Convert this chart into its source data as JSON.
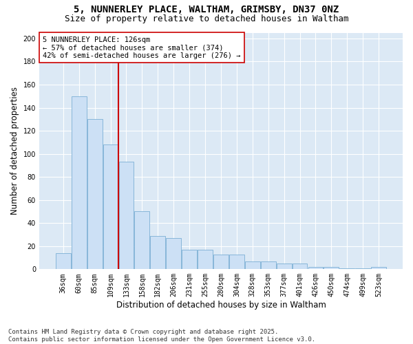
{
  "title": "5, NUNNERLEY PLACE, WALTHAM, GRIMSBY, DN37 0NZ",
  "subtitle": "Size of property relative to detached houses in Waltham",
  "xlabel": "Distribution of detached houses by size in Waltham",
  "ylabel": "Number of detached properties",
  "categories": [
    "36sqm",
    "60sqm",
    "85sqm",
    "109sqm",
    "133sqm",
    "158sqm",
    "182sqm",
    "206sqm",
    "231sqm",
    "255sqm",
    "280sqm",
    "304sqm",
    "328sqm",
    "353sqm",
    "377sqm",
    "401sqm",
    "426sqm",
    "450sqm",
    "474sqm",
    "499sqm",
    "523sqm"
  ],
  "values": [
    14,
    150,
    130,
    108,
    93,
    50,
    29,
    27,
    17,
    17,
    13,
    13,
    7,
    7,
    5,
    5,
    2,
    2,
    1,
    1,
    2
  ],
  "bar_color": "#cce0f5",
  "bar_edge_color": "#7bafd4",
  "vline_color": "#cc0000",
  "vline_pos": 3.5,
  "annotation_text": "5 NUNNERLEY PLACE: 126sqm\n← 57% of detached houses are smaller (374)\n42% of semi-detached houses are larger (276) →",
  "annotation_box_color": "#ffffff",
  "annotation_box_edge": "#cc0000",
  "ylim": [
    0,
    205
  ],
  "yticks": [
    0,
    20,
    40,
    60,
    80,
    100,
    120,
    140,
    160,
    180,
    200
  ],
  "footer": "Contains HM Land Registry data © Crown copyright and database right 2025.\nContains public sector information licensed under the Open Government Licence v3.0.",
  "plot_bg_color": "#dce9f5",
  "title_fontsize": 10,
  "subtitle_fontsize": 9,
  "tick_fontsize": 7,
  "label_fontsize": 8.5,
  "footer_fontsize": 6.5,
  "annotation_fontsize": 7.5
}
